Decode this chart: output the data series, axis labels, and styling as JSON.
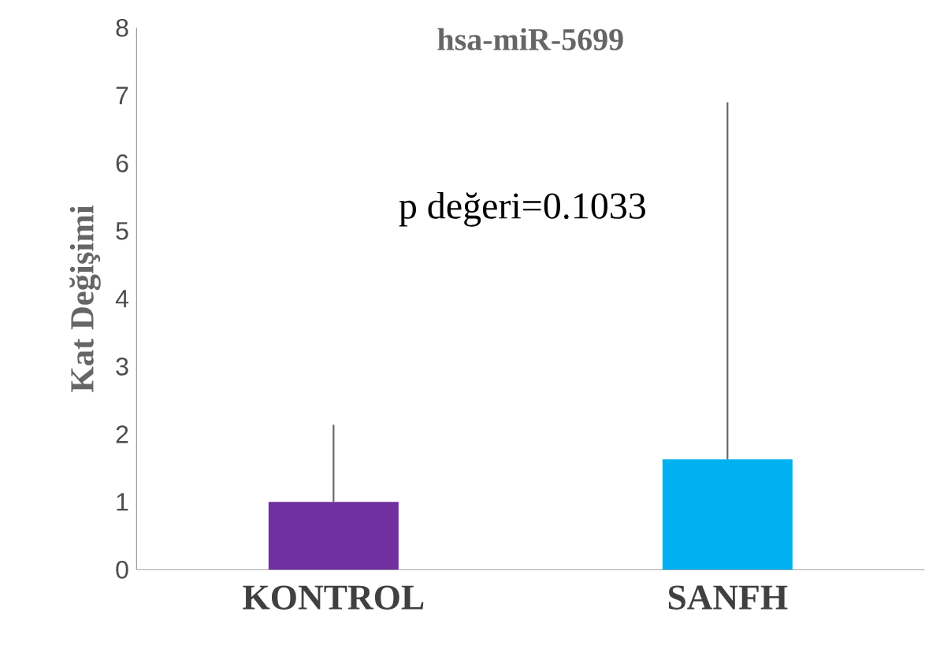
{
  "chart_data": {
    "type": "bar",
    "title": "hsa-miR-5699",
    "ylabel": "Kat Değişimi",
    "categories": [
      "KONTROL",
      "SANFH"
    ],
    "values": [
      1.0,
      1.63
    ],
    "colors": [
      "#7030a0",
      "#00b0f0"
    ],
    "errors": [
      [
        1.0,
        2.14
      ],
      [
        1.63,
        6.9
      ]
    ],
    "ylim": [
      0,
      8
    ],
    "yticks": [
      0,
      1,
      2,
      3,
      4,
      5,
      6,
      7,
      8
    ],
    "annotations": [
      "p değeri=0.1033"
    ],
    "grid": false
  }
}
